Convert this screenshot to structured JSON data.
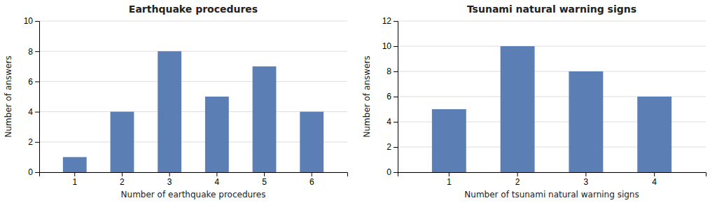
{
  "chart_data": [
    {
      "type": "bar",
      "title": "Earthquake procedures",
      "xlabel": "Number of earthquake procedures",
      "ylabel": "Number of answers",
      "categories": [
        1,
        2,
        3,
        4,
        5,
        6
      ],
      "values": [
        1,
        4,
        8,
        5,
        7,
        4
      ],
      "color": "#5b7fb5",
      "ylim": [
        0,
        10
      ],
      "yticks": [
        0,
        2,
        4,
        6,
        8,
        10
      ],
      "grid": true
    },
    {
      "type": "bar",
      "title": "Tsunami natural warning signs",
      "xlabel": "Number of tsunami natural warning signs",
      "ylabel": "Number of answers",
      "categories": [
        1,
        2,
        3,
        4
      ],
      "values": [
        5,
        10,
        8,
        6
      ],
      "color": "#5b7fb5",
      "ylim": [
        0,
        12
      ],
      "yticks": [
        0,
        2,
        4,
        6,
        8,
        10,
        12
      ],
      "grid": true
    }
  ]
}
